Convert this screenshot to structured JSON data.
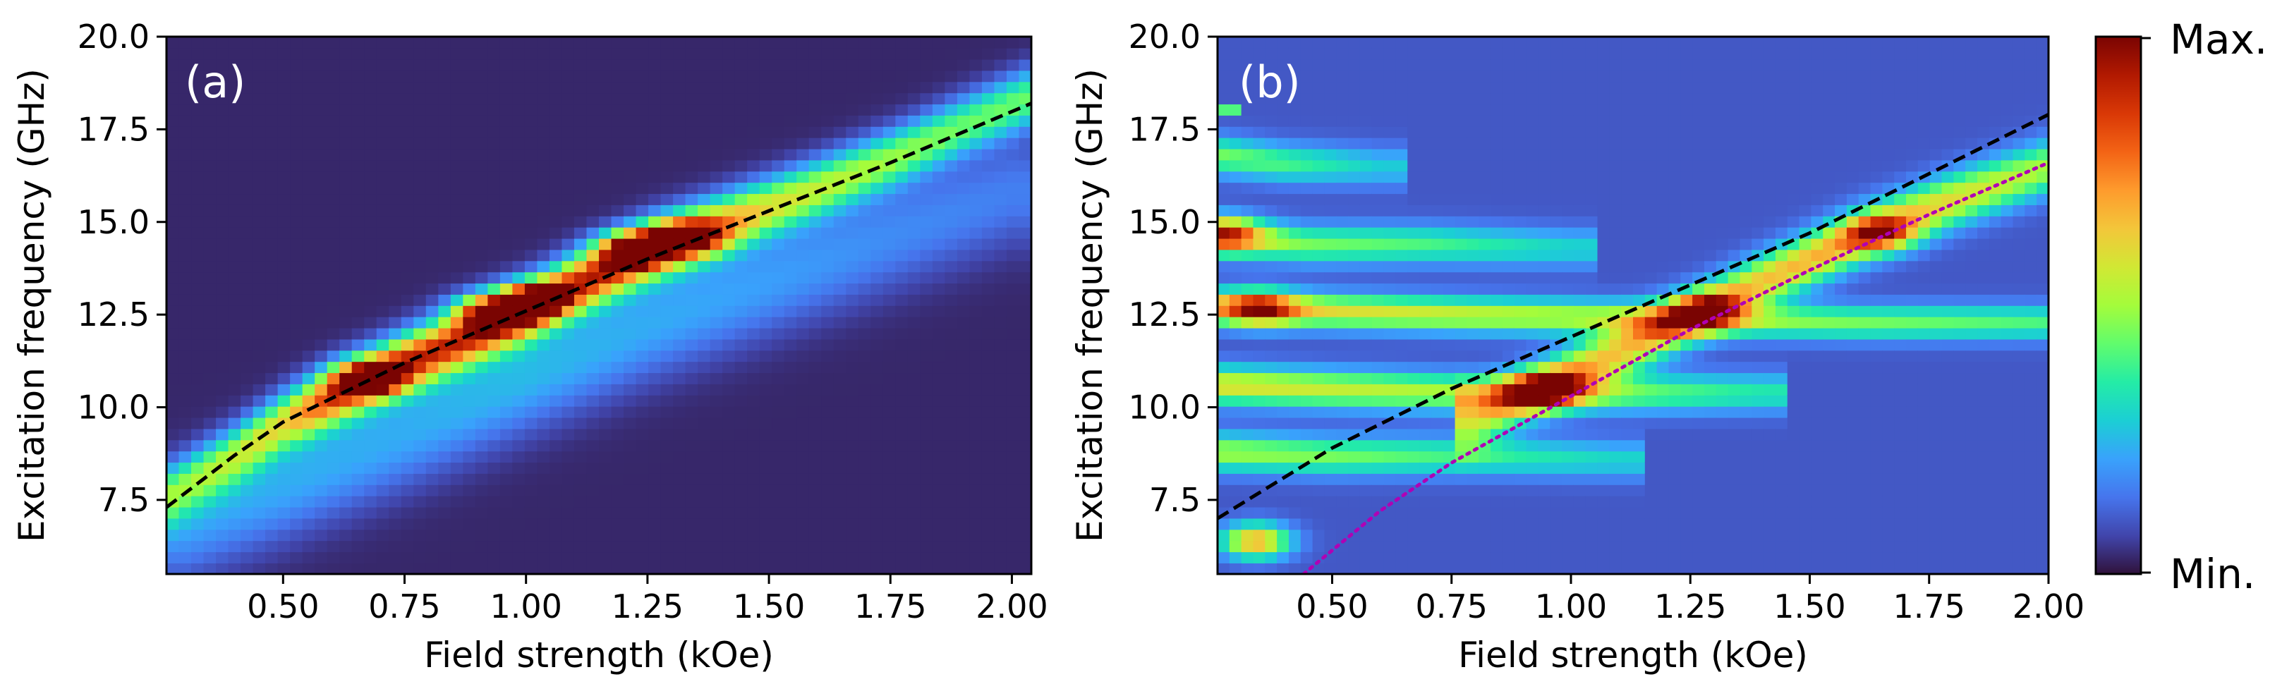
{
  "colors": {
    "cmap": [
      "#30123b",
      "#4145ab",
      "#4675ed",
      "#39a2fc",
      "#1bcfd4",
      "#24eca6",
      "#61fc6c",
      "#a4fc3b",
      "#d1e834",
      "#f3c63a",
      "#fe9b2d",
      "#f36315",
      "#d93806",
      "#b11901",
      "#7a0402"
    ],
    "dashed_line": "#000000",
    "dotted_line": "#b000b5"
  },
  "colorbar": {
    "max_label": "Max.",
    "min_label": "Min."
  },
  "chart_data": [
    {
      "type": "heatmap",
      "panel_label": "(a)",
      "xlabel": "Field strength (kOe)",
      "ylabel": "Excitation frequency (GHz)",
      "xlim": [
        0.26,
        2.04
      ],
      "ylim": [
        5.5,
        20.0
      ],
      "xticks": [
        0.5,
        0.75,
        1.0,
        1.25,
        1.5,
        1.75,
        2.0
      ],
      "xtick_labels": [
        "0.50",
        "0.75",
        "1.00",
        "1.25",
        "1.50",
        "1.75",
        "2.00"
      ],
      "yticks": [
        7.5,
        10.0,
        12.5,
        15.0,
        17.5,
        20.0
      ],
      "ytick_labels": [
        "7.5",
        "10.0",
        "12.5",
        "15.0",
        "17.5",
        "20.0"
      ],
      "background_intensity": 0.03,
      "bands": [
        {
          "name": "main mode",
          "x": [
            0.26,
            0.4,
            0.5,
            0.6,
            0.75,
            0.9,
            1.0,
            1.1,
            1.25,
            1.4,
            1.5,
            1.6,
            1.75,
            1.9,
            2.04
          ],
          "y": [
            7.6,
            8.7,
            9.6,
            10.3,
            11.2,
            12.0,
            12.6,
            13.3,
            14.2,
            14.9,
            15.4,
            15.9,
            16.7,
            17.6,
            18.4
          ],
          "intensity": [
            0.35,
            0.45,
            0.55,
            0.8,
            0.85,
            0.85,
            0.9,
            0.85,
            0.9,
            0.7,
            0.55,
            0.5,
            0.45,
            0.4,
            0.4
          ],
          "width": 0.75
        },
        {
          "name": "broad lower band",
          "x": [
            0.3,
            0.5,
            0.75,
            1.0,
            1.25,
            1.5,
            1.75,
            2.0
          ],
          "y": [
            6.8,
            7.9,
            9.3,
            10.8,
            12.2,
            13.4,
            14.6,
            15.8
          ],
          "intensity": [
            0.18,
            0.2,
            0.2,
            0.22,
            0.2,
            0.18,
            0.15,
            0.13
          ],
          "width": 1.4
        }
      ],
      "spots": [
        {
          "x": 0.68,
          "y": 10.8,
          "intensity": 0.95
        },
        {
          "x": 0.92,
          "y": 12.6,
          "intensity": 0.95
        },
        {
          "x": 1.01,
          "y": 12.9,
          "intensity": 1.0
        },
        {
          "x": 1.22,
          "y": 14.3,
          "intensity": 1.0
        },
        {
          "x": 1.33,
          "y": 14.6,
          "intensity": 0.85
        }
      ],
      "curves": [
        {
          "name": "dashed fit",
          "style": "dashed",
          "x": [
            0.26,
            0.4,
            0.5,
            0.75,
            1.0,
            1.25,
            1.5,
            1.75,
            2.04
          ],
          "y": [
            7.3,
            8.7,
            9.6,
            11.2,
            12.6,
            14.0,
            15.3,
            16.6,
            18.2
          ]
        }
      ]
    },
    {
      "type": "heatmap",
      "panel_label": "(b)",
      "xlabel": "Field strength (kOe)",
      "ylabel": "Excitation frequency (GHz)",
      "xlim": [
        0.26,
        2.0
      ],
      "ylim": [
        5.5,
        20.0
      ],
      "xticks": [
        0.5,
        0.75,
        1.0,
        1.25,
        1.5,
        1.75,
        2.0
      ],
      "xtick_labels": [
        "0.50",
        "0.75",
        "1.00",
        "1.25",
        "1.50",
        "1.75",
        "2.00"
      ],
      "yticks": [
        7.5,
        10.0,
        12.5,
        15.0,
        17.5,
        20.0
      ],
      "ytick_labels": [
        "7.5",
        "10.0",
        "12.5",
        "15.0",
        "17.5",
        "20.0"
      ],
      "background_intensity": 0.1,
      "bands": [
        {
          "name": "horizontal band 12.5",
          "x": [
            0.26,
            0.5,
            0.8,
            1.2,
            1.6,
            2.0
          ],
          "y": [
            12.7,
            12.6,
            12.5,
            12.4,
            12.3,
            12.3
          ],
          "intensity": [
            0.55,
            0.5,
            0.45,
            0.4,
            0.35,
            0.3
          ],
          "width": 0.45
        },
        {
          "name": "horizontal band 10.5",
          "x": [
            0.26,
            0.5,
            0.8,
            1.1,
            1.4
          ],
          "y": [
            10.6,
            10.5,
            10.4,
            10.4,
            10.4
          ],
          "intensity": [
            0.5,
            0.45,
            0.4,
            0.35,
            0.25
          ],
          "width": 0.5
        },
        {
          "name": "horizontal band 14.5",
          "x": [
            0.26,
            0.45,
            0.7,
            1.0
          ],
          "y": [
            14.6,
            14.4,
            14.4,
            14.3
          ],
          "intensity": [
            0.45,
            0.35,
            0.3,
            0.2
          ],
          "width": 0.5
        },
        {
          "name": "horizontal band 16.5",
          "x": [
            0.26,
            0.4,
            0.6
          ],
          "y": [
            16.8,
            16.6,
            16.5
          ],
          "intensity": [
            0.35,
            0.3,
            0.18
          ],
          "width": 0.5
        },
        {
          "name": "horizontal band 8.7",
          "x": [
            0.26,
            0.5,
            0.8,
            1.1
          ],
          "y": [
            8.8,
            8.7,
            8.7,
            8.6
          ],
          "intensity": [
            0.4,
            0.35,
            0.28,
            0.2
          ],
          "width": 0.5
        },
        {
          "name": "rising mode",
          "x": [
            0.8,
            1.0,
            1.2,
            1.4,
            1.6,
            1.8,
            2.0
          ],
          "y": [
            9.7,
            10.9,
            12.1,
            13.4,
            14.6,
            15.6,
            16.5
          ],
          "intensity": [
            0.45,
            0.55,
            0.55,
            0.55,
            0.6,
            0.5,
            0.4
          ],
          "width": 0.7
        },
        {
          "name": "left edge",
          "x": [
            0.27,
            0.27
          ],
          "y": [
            6.0,
            18.0
          ],
          "intensity": [
            0.35,
            0.35
          ],
          "width": 0.1
        }
      ],
      "spots": [
        {
          "x": 0.34,
          "y": 6.4,
          "intensity": 1.0
        },
        {
          "x": 0.35,
          "y": 12.7,
          "intensity": 0.75
        },
        {
          "x": 0.28,
          "y": 14.7,
          "intensity": 0.75
        },
        {
          "x": 0.95,
          "y": 10.5,
          "intensity": 0.75
        },
        {
          "x": 1.65,
          "y": 14.7,
          "intensity": 0.7
        },
        {
          "x": 1.28,
          "y": 12.7,
          "intensity": 0.6
        }
      ],
      "curves": [
        {
          "name": "dashed fit",
          "style": "dashed",
          "x": [
            0.26,
            0.5,
            0.75,
            1.0,
            1.25,
            1.5,
            1.75,
            2.0
          ],
          "y": [
            7.0,
            8.9,
            10.5,
            11.9,
            13.3,
            14.7,
            16.3,
            17.9
          ]
        },
        {
          "name": "dotted fit",
          "style": "dotted",
          "x": [
            0.44,
            0.6,
            0.75,
            1.0,
            1.25,
            1.5,
            1.75,
            2.0
          ],
          "y": [
            5.5,
            7.2,
            8.5,
            10.3,
            12.1,
            13.7,
            15.2,
            16.6
          ]
        }
      ]
    }
  ]
}
